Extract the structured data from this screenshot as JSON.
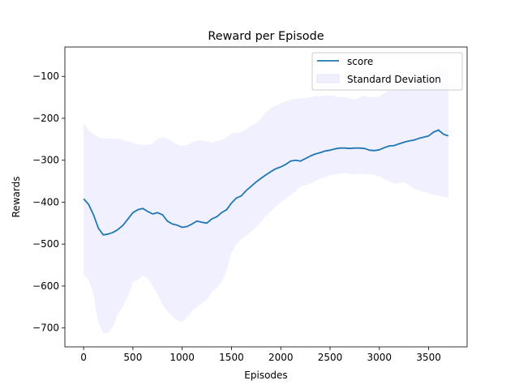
{
  "chart_data": {
    "type": "line",
    "title": "Reward per Episode",
    "xlabel": "Episodes",
    "ylabel": "Rewards",
    "xlim": [
      -190,
      3890
    ],
    "ylim": [
      -745,
      -30
    ],
    "xticks": [
      0,
      500,
      1000,
      1500,
      2000,
      2500,
      3000,
      3500
    ],
    "yticks": [
      -700,
      -600,
      -500,
      -400,
      -300,
      -200,
      -100
    ],
    "grid": false,
    "legend_position": "top-right",
    "colors": {
      "line": "#1f77b4",
      "band": "#0000ff"
    },
    "series": [
      {
        "name": "score",
        "x": [
          0,
          50,
          100,
          150,
          200,
          250,
          300,
          350,
          400,
          450,
          500,
          550,
          600,
          650,
          700,
          750,
          800,
          850,
          900,
          950,
          1000,
          1050,
          1100,
          1150,
          1200,
          1250,
          1300,
          1350,
          1400,
          1450,
          1500,
          1550,
          1600,
          1650,
          1700,
          1750,
          1800,
          1850,
          1900,
          1950,
          2000,
          2050,
          2100,
          2150,
          2200,
          2250,
          2300,
          2350,
          2400,
          2450,
          2500,
          2550,
          2600,
          2650,
          2700,
          2750,
          2800,
          2850,
          2900,
          2950,
          3000,
          3050,
          3100,
          3150,
          3200,
          3250,
          3300,
          3350,
          3400,
          3450,
          3500,
          3550,
          3600,
          3650,
          3700
        ],
        "y": [
          -392,
          -405,
          -430,
          -462,
          -478,
          -476,
          -472,
          -465,
          -455,
          -440,
          -425,
          -418,
          -415,
          -422,
          -428,
          -425,
          -430,
          -445,
          -452,
          -455,
          -460,
          -458,
          -452,
          -445,
          -448,
          -450,
          -440,
          -435,
          -425,
          -418,
          -402,
          -390,
          -385,
          -372,
          -362,
          -352,
          -343,
          -335,
          -327,
          -320,
          -316,
          -310,
          -302,
          -300,
          -302,
          -296,
          -290,
          -285,
          -282,
          -278,
          -276,
          -273,
          -271,
          -271,
          -272,
          -271,
          -271,
          -272,
          -276,
          -277,
          -275,
          -270,
          -266,
          -265,
          -261,
          -257,
          -254,
          -252,
          -248,
          -245,
          -242,
          -233,
          -228,
          -238,
          -242
        ]
      }
    ],
    "band": {
      "name": "Standard Deviation",
      "upper": [
        -210,
        -228,
        -238,
        -246,
        -248,
        -248,
        -250,
        -248,
        -252,
        -255,
        -258,
        -262,
        -263,
        -263,
        -260,
        -250,
        -245,
        -248,
        -256,
        -262,
        -266,
        -263,
        -258,
        -253,
        -253,
        -255,
        -258,
        -255,
        -252,
        -246,
        -236,
        -235,
        -232,
        -226,
        -218,
        -212,
        -200,
        -185,
        -176,
        -170,
        -165,
        -160,
        -155,
        -153,
        -152,
        -152,
        -150,
        -147,
        -148,
        -146,
        -145,
        -148,
        -150,
        -150,
        -152,
        -155,
        -150,
        -146,
        -150,
        -150,
        -148,
        -140,
        -134,
        -134,
        -130,
        -125,
        -117,
        -108,
        -100,
        -96,
        -90,
        -82,
        -74,
        -86,
        -88
      ],
      "lower": [
        -574,
        -585,
        -620,
        -688,
        -712,
        -712,
        -695,
        -665,
        -650,
        -625,
        -590,
        -585,
        -575,
        -582,
        -600,
        -620,
        -645,
        -660,
        -672,
        -683,
        -685,
        -675,
        -660,
        -650,
        -641,
        -633,
        -615,
        -605,
        -590,
        -565,
        -520,
        -500,
        -488,
        -480,
        -470,
        -460,
        -447,
        -432,
        -422,
        -410,
        -400,
        -392,
        -382,
        -375,
        -362,
        -360,
        -356,
        -350,
        -343,
        -340,
        -336,
        -334,
        -332,
        -331,
        -333,
        -334,
        -332,
        -333,
        -334,
        -335,
        -338,
        -345,
        -350,
        -355,
        -355,
        -352,
        -360,
        -368,
        -372,
        -375,
        -378,
        -382,
        -385,
        -387,
        -390
      ]
    }
  }
}
